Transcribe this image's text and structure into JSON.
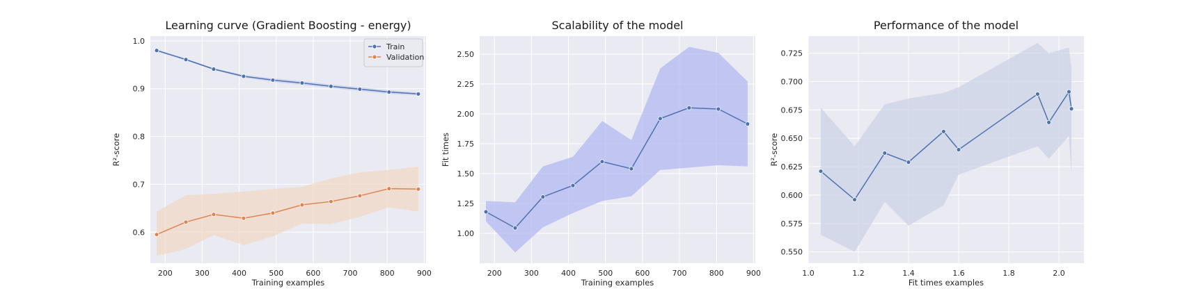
{
  "chart_data": [
    {
      "type": "line",
      "title": "Learning curve (Gradient Boosting - energy)",
      "xlabel": "Training examples",
      "ylabel": "R²-score",
      "xlim": [
        160,
        905
      ],
      "ylim": [
        0.535,
        1.01
      ],
      "xticks": [
        200,
        300,
        400,
        500,
        600,
        700,
        800,
        900
      ],
      "yticks": [
        0.6,
        0.7,
        0.8,
        0.9,
        1.0
      ],
      "ytick_labels": [
        "0.6",
        "0.7",
        "0.8",
        "0.9",
        "1.0"
      ],
      "grid": true,
      "legend_position": "top-right",
      "x": [
        177,
        256,
        331,
        412,
        491,
        570,
        648,
        726,
        805,
        884
      ],
      "series": [
        {
          "name": "Train",
          "color": "#4c72b0",
          "values": [
            0.98,
            0.961,
            0.941,
            0.926,
            0.918,
            0.912,
            0.905,
            0.899,
            0.893,
            0.889
          ],
          "band_upper": [
            0.982,
            0.963,
            0.943,
            0.929,
            0.922,
            0.916,
            0.909,
            0.903,
            0.897,
            0.892
          ],
          "band_lower": [
            0.978,
            0.959,
            0.939,
            0.923,
            0.914,
            0.908,
            0.901,
            0.895,
            0.889,
            0.886
          ]
        },
        {
          "name": "Validation",
          "color": "#dd8452",
          "values": [
            0.595,
            0.621,
            0.637,
            0.629,
            0.64,
            0.657,
            0.664,
            0.676,
            0.691,
            0.69
          ],
          "band_upper": [
            0.643,
            0.677,
            0.68,
            0.685,
            0.69,
            0.695,
            0.712,
            0.725,
            0.73,
            0.737
          ],
          "band_lower": [
            0.55,
            0.565,
            0.594,
            0.573,
            0.591,
            0.618,
            0.617,
            0.632,
            0.652,
            0.643
          ]
        }
      ]
    },
    {
      "type": "line",
      "title": "Scalability of the model",
      "xlabel": "Training examples",
      "ylabel": "Fit times",
      "xlim": [
        160,
        905
      ],
      "ylim": [
        0.75,
        2.65
      ],
      "xticks": [
        200,
        300,
        400,
        500,
        600,
        700,
        800,
        900
      ],
      "yticks": [
        1.0,
        1.25,
        1.5,
        1.75,
        2.0,
        2.25,
        2.5
      ],
      "ytick_labels": [
        "1.00",
        "1.25",
        "1.50",
        "1.75",
        "2.00",
        "2.25",
        "2.50"
      ],
      "grid": true,
      "x": [
        177,
        256,
        331,
        412,
        491,
        570,
        648,
        726,
        805,
        884
      ],
      "series": [
        {
          "color": "#4c72b0",
          "band_color": "#b3b8f0",
          "values": [
            1.18,
            1.045,
            1.305,
            1.4,
            1.6,
            1.54,
            1.96,
            2.05,
            2.04,
            1.915
          ],
          "band_upper": [
            1.27,
            1.26,
            1.56,
            1.64,
            1.94,
            1.78,
            2.38,
            2.56,
            2.51,
            2.27
          ],
          "band_lower": [
            1.1,
            0.84,
            1.05,
            1.17,
            1.27,
            1.31,
            1.53,
            1.55,
            1.57,
            1.56
          ]
        }
      ]
    },
    {
      "type": "line",
      "title": "Performance of the model",
      "xlabel": "Fit times examples",
      "ylabel": "R²-score",
      "xlim": [
        1.0,
        2.1
      ],
      "ylim": [
        0.54,
        0.74
      ],
      "xticks": [
        1.0,
        1.2,
        1.4,
        1.6,
        1.8,
        2.0
      ],
      "xtick_labels": [
        "1.0",
        "1.2",
        "1.4",
        "1.6",
        "1.8",
        "2.0"
      ],
      "yticks": [
        0.55,
        0.575,
        0.6,
        0.625,
        0.65,
        0.675,
        0.7,
        0.725
      ],
      "ytick_labels": [
        "0.550",
        "0.575",
        "0.600",
        "0.625",
        "0.650",
        "0.675",
        "0.700",
        "0.725"
      ],
      "grid": true,
      "x": [
        1.05,
        1.185,
        1.305,
        1.4,
        1.54,
        1.6,
        1.915,
        1.96,
        2.04,
        2.05
      ],
      "series": [
        {
          "color": "#4c72b0",
          "band_color": "#ccd3e6",
          "values": [
            0.621,
            0.596,
            0.637,
            0.629,
            0.656,
            0.64,
            0.689,
            0.664,
            0.691,
            0.676
          ],
          "band_upper": [
            0.677,
            0.643,
            0.68,
            0.685,
            0.69,
            0.695,
            0.734,
            0.725,
            0.73,
            0.712
          ],
          "band_lower": [
            0.565,
            0.55,
            0.594,
            0.573,
            0.591,
            0.618,
            0.643,
            0.632,
            0.652,
            0.617
          ]
        }
      ]
    }
  ]
}
